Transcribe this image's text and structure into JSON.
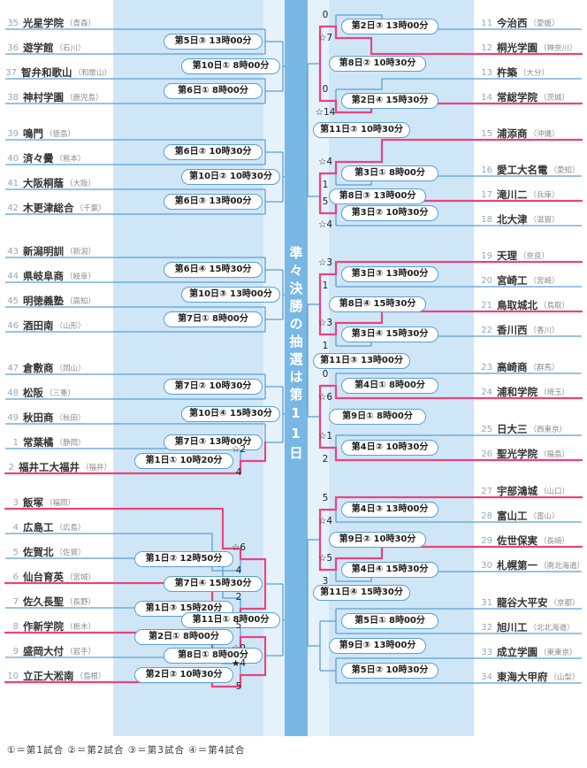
{
  "teams_left": [
    {
      "no": "35",
      "name": "光星学院",
      "pref": "青森"
    },
    {
      "no": "36",
      "name": "遊学館",
      "pref": "石川"
    },
    {
      "no": "37",
      "name": "智弁和歌山",
      "pref": "和歌山"
    },
    {
      "no": "38",
      "name": "神村学園",
      "pref": "鹿児島"
    },
    {
      "no": "39",
      "name": "鳴門",
      "pref": "徳島"
    },
    {
      "no": "40",
      "name": "済々黌",
      "pref": "熊本"
    },
    {
      "no": "41",
      "name": "大阪桐蔭",
      "pref": "大阪"
    },
    {
      "no": "42",
      "name": "木更津総合",
      "pref": "千葉"
    },
    {
      "no": "43",
      "name": "新潟明訓",
      "pref": "新潟"
    },
    {
      "no": "44",
      "name": "県岐阜商",
      "pref": "岐阜"
    },
    {
      "no": "45",
      "name": "明徳義塾",
      "pref": "高知"
    },
    {
      "no": "46",
      "name": "酒田南",
      "pref": "山形"
    },
    {
      "no": "47",
      "name": "倉敷商",
      "pref": "岡山"
    },
    {
      "no": "48",
      "name": "松阪",
      "pref": "三重"
    },
    {
      "no": "49",
      "name": "秋田商",
      "pref": "秋田"
    },
    {
      "no": "1",
      "name": "常葉橘",
      "pref": "静岡"
    },
    {
      "no": "2",
      "name": "福井工大福井",
      "pref": "福井"
    },
    {
      "no": "3",
      "name": "飯塚",
      "pref": "福岡"
    },
    {
      "no": "4",
      "name": "広島工",
      "pref": "広島"
    },
    {
      "no": "5",
      "name": "佐賀北",
      "pref": "佐賀"
    },
    {
      "no": "6",
      "name": "仙台育英",
      "pref": "宮城"
    },
    {
      "no": "7",
      "name": "佐久長聖",
      "pref": "長野"
    },
    {
      "no": "8",
      "name": "作新学院",
      "pref": "栃木"
    },
    {
      "no": "9",
      "name": "盛岡大付",
      "pref": "岩手"
    },
    {
      "no": "10",
      "name": "立正大淞南",
      "pref": "島根"
    }
  ],
  "teams_right": [
    {
      "no": "11",
      "name": "今治西",
      "pref": "愛媛"
    },
    {
      "no": "12",
      "name": "桐光学園",
      "pref": "神奈川"
    },
    {
      "no": "13",
      "name": "杵築",
      "pref": "大分"
    },
    {
      "no": "14",
      "name": "常総学院",
      "pref": "茨城"
    },
    {
      "no": "15",
      "name": "浦添商",
      "pref": "沖縄"
    },
    {
      "no": "16",
      "name": "愛工大名電",
      "pref": "愛知"
    },
    {
      "no": "17",
      "name": "滝川二",
      "pref": "兵庫"
    },
    {
      "no": "18",
      "name": "北大津",
      "pref": "滋賀"
    },
    {
      "no": "19",
      "name": "天理",
      "pref": "奈良"
    },
    {
      "no": "20",
      "name": "宮崎工",
      "pref": "宮崎"
    },
    {
      "no": "21",
      "name": "鳥取城北",
      "pref": "鳥取"
    },
    {
      "no": "22",
      "name": "香川西",
      "pref": "香川"
    },
    {
      "no": "23",
      "name": "高崎商",
      "pref": "群馬"
    },
    {
      "no": "24",
      "name": "浦和学院",
      "pref": "埼玉"
    },
    {
      "no": "25",
      "name": "日大三",
      "pref": "西東京"
    },
    {
      "no": "26",
      "name": "聖光学院",
      "pref": "福島"
    },
    {
      "no": "27",
      "name": "宇部鴻城",
      "pref": "山口"
    },
    {
      "no": "28",
      "name": "富山工",
      "pref": "富山"
    },
    {
      "no": "29",
      "name": "佐世保実",
      "pref": "長崎"
    },
    {
      "no": "30",
      "name": "札幌第一",
      "pref": "南北海道"
    },
    {
      "no": "31",
      "name": "龍谷大平安",
      "pref": "京都"
    },
    {
      "no": "32",
      "name": "旭川工",
      "pref": "北北海道"
    },
    {
      "no": "33",
      "name": "成立学園",
      "pref": "東東京"
    },
    {
      "no": "34",
      "name": "東海大甲府",
      "pref": "山梨"
    }
  ],
  "matches_left": [
    {
      "id": "d5g3",
      "label": "第5日③ 13時00分"
    },
    {
      "id": "d10g1",
      "label": "第10日① 8時00分"
    },
    {
      "id": "d6g1",
      "label": "第6日① 8時00分"
    },
    {
      "id": "d6g2",
      "label": "第6日② 10時30分"
    },
    {
      "id": "d10g2",
      "label": "第10日② 10時30分"
    },
    {
      "id": "d6g3",
      "label": "第6日③ 13時00分"
    },
    {
      "id": "d6g4",
      "label": "第6日④ 15時30分"
    },
    {
      "id": "d10g3",
      "label": "第10日③ 13時00分"
    },
    {
      "id": "d7g1",
      "label": "第7日① 8時00分"
    },
    {
      "id": "d7g2",
      "label": "第7日② 10時30分"
    },
    {
      "id": "d10g4",
      "label": "第10日④ 15時30分"
    },
    {
      "id": "d7g3",
      "label": "第7日③ 13時00分"
    },
    {
      "id": "d1g1",
      "label": "第1日① 10時20分",
      "score_top": "☆2",
      "score_bottom": "4"
    },
    {
      "id": "d1g2",
      "label": "第1日② 12時50分",
      "score_top": "☆6",
      "score_bottom": "4"
    },
    {
      "id": "d7g4",
      "label": "第7日④ 15時30分"
    },
    {
      "id": "d1g3",
      "label": "第1日③ 15時20分",
      "score_top": "2",
      "score_bottom": "☆8"
    },
    {
      "id": "d11g1",
      "label": "第11日① 8時00分"
    },
    {
      "id": "d2g1",
      "label": "第2日① 8時00分",
      "score_top": "5",
      "score_bottom": "☆9"
    },
    {
      "id": "d8g1",
      "label": "第8日① 8時00分"
    },
    {
      "id": "d2g2",
      "label": "第2日② 10時30分",
      "score_top": "★4",
      "score_bottom": "5"
    }
  ],
  "matches_right": [
    {
      "id": "d2g3",
      "label": "第2日③ 13時00分",
      "score_top": "0",
      "score_bottom": "☆7"
    },
    {
      "id": "d8g2",
      "label": "第8日② 10時30分"
    },
    {
      "id": "d2g4",
      "label": "第2日④ 15時30分",
      "score_top": "0",
      "score_bottom": "☆14"
    },
    {
      "id": "d11g2",
      "label": "第11日② 10時30分"
    },
    {
      "id": "d3g1",
      "label": "第3日① 8時00分",
      "score_top": "☆4",
      "score_bottom": "1"
    },
    {
      "id": "d8g3",
      "label": "第8日③ 13時00分"
    },
    {
      "id": "d3g2",
      "label": "第3日② 10時30分",
      "score_top": "5",
      "score_bottom": "☆4"
    },
    {
      "id": "d3g3",
      "label": "第3日③ 13時00分",
      "score_top": "☆3",
      "score_bottom": "1"
    },
    {
      "id": "d8g4",
      "label": "第8日④ 15時30分"
    },
    {
      "id": "d3g4",
      "label": "第3日④ 15時30分",
      "score_top": "☆3",
      "score_bottom": "1"
    },
    {
      "id": "d11g3",
      "label": "第11日③ 13時00分"
    },
    {
      "id": "d4g1",
      "label": "第4日① 8時00分",
      "score_top": "0",
      "score_bottom": "☆6"
    },
    {
      "id": "d9g1",
      "label": "第9日① 8時00分"
    },
    {
      "id": "d4g2",
      "label": "第4日② 10時30分",
      "score_top": "☆1",
      "score_bottom": "2"
    },
    {
      "id": "d4g3",
      "label": "第4日③ 13時00分",
      "score_top": "5",
      "score_bottom": "☆4"
    },
    {
      "id": "d9g2",
      "label": "第9日② 10時30分"
    },
    {
      "id": "d4g4",
      "label": "第4日④ 15時30分",
      "score_top": "☆5",
      "score_bottom": "3"
    },
    {
      "id": "d11g4",
      "label": "第11日④ 15時30分"
    },
    {
      "id": "d5g1",
      "label": "第5日① 8時00分"
    },
    {
      "id": "d9g3",
      "label": "第9日③ 13時00分"
    },
    {
      "id": "d5g2",
      "label": "第5日② 10時30分"
    }
  ],
  "center_note": "準々決勝の抽選は第11日",
  "footer_legend": "①＝第1試合 ②＝第2試合 ③＝第3試合 ④＝第4試合",
  "colors": {
    "line": "#5a9fd4",
    "winner": "#e8447e",
    "field": "#cfe6f7",
    "stripe": "#e6f2fb",
    "band": "#79b7e4"
  }
}
